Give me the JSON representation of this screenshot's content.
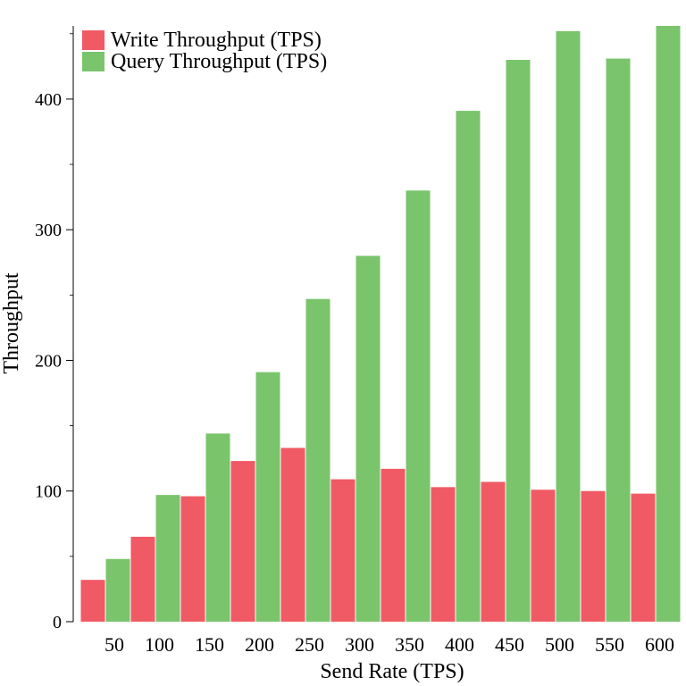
{
  "chart_data": {
    "type": "bar",
    "categories": [
      "50",
      "100",
      "150",
      "200",
      "250",
      "300",
      "350",
      "400",
      "450",
      "500",
      "550",
      "600"
    ],
    "series": [
      {
        "name": "Write Throughput (TPS)",
        "color": "#f05a64",
        "values": [
          32,
          65,
          96,
          123,
          133,
          109,
          117,
          103,
          107,
          101,
          100,
          98
        ]
      },
      {
        "name": "Query Throughput (TPS)",
        "color": "#7ac46c",
        "values": [
          48,
          97,
          144,
          191,
          247,
          280,
          330,
          391,
          430,
          452,
          431,
          456
        ]
      }
    ],
    "xlabel": "Send Rate (TPS)",
    "ylabel": "Throughput",
    "ylim": [
      0,
      456
    ],
    "yticks": [
      0,
      100,
      200,
      300,
      400
    ],
    "grid": false,
    "legend_position": "top-left"
  }
}
